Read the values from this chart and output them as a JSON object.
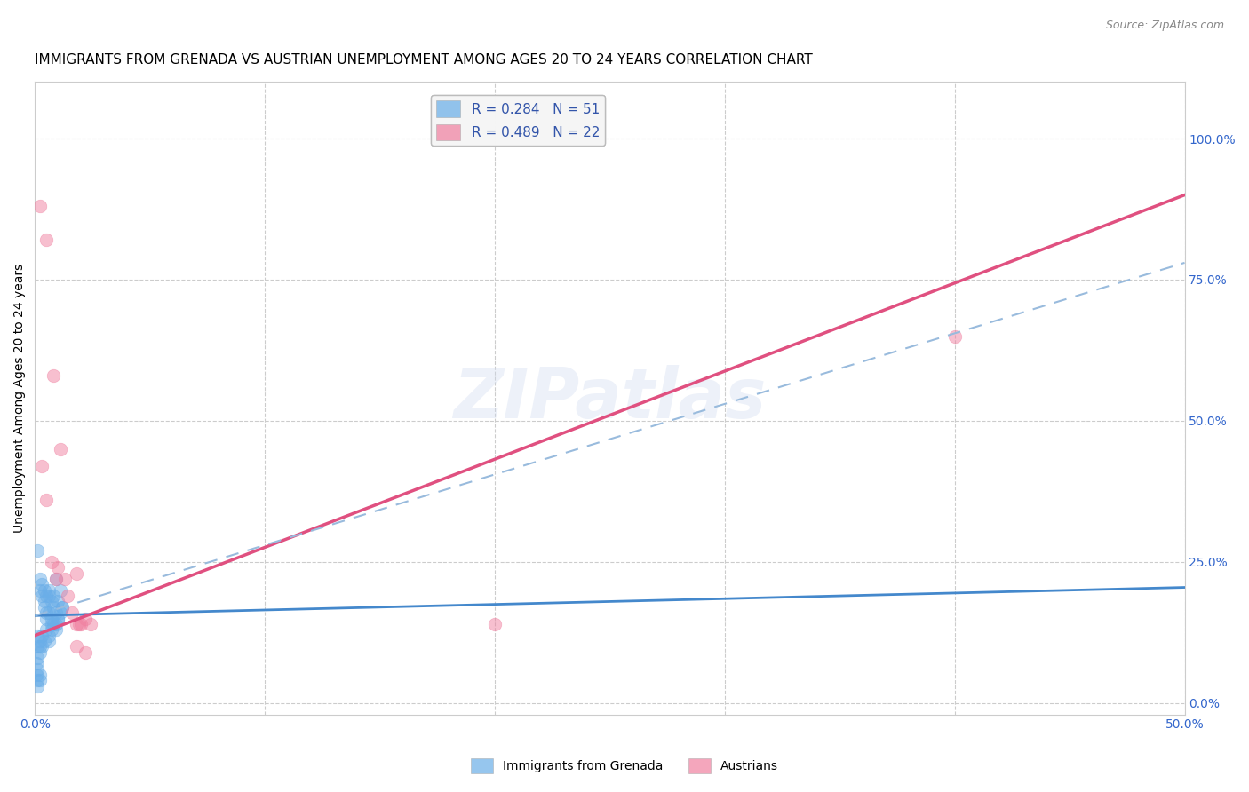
{
  "title": "IMMIGRANTS FROM GRENADA VS AUSTRIAN UNEMPLOYMENT AMONG AGES 20 TO 24 YEARS CORRELATION CHART",
  "source": "Source: ZipAtlas.com",
  "ylabel": "Unemployment Among Ages 20 to 24 years",
  "legend_entries": [
    {
      "label": "R = 0.284   N = 51",
      "color": "#a8c8f8"
    },
    {
      "label": "R = 0.489   N = 22",
      "color": "#f8a8b8"
    }
  ],
  "legend_bottom": [
    "Immigrants from Grenada",
    "Austrians"
  ],
  "watermark": "ZIPatlas",
  "blue_scatter": [
    [
      0.001,
      0.27
    ],
    [
      0.002,
      0.22
    ],
    [
      0.002,
      0.2
    ],
    [
      0.003,
      0.21
    ],
    [
      0.003,
      0.19
    ],
    [
      0.004,
      0.2
    ],
    [
      0.004,
      0.18
    ],
    [
      0.004,
      0.17
    ],
    [
      0.005,
      0.16
    ],
    [
      0.005,
      0.19
    ],
    [
      0.005,
      0.15
    ],
    [
      0.006,
      0.19
    ],
    [
      0.006,
      0.16
    ],
    [
      0.006,
      0.2
    ],
    [
      0.007,
      0.14
    ],
    [
      0.007,
      0.18
    ],
    [
      0.007,
      0.15
    ],
    [
      0.008,
      0.19
    ],
    [
      0.008,
      0.17
    ],
    [
      0.009,
      0.22
    ],
    [
      0.009,
      0.16
    ],
    [
      0.01,
      0.18
    ],
    [
      0.01,
      0.15
    ],
    [
      0.011,
      0.2
    ],
    [
      0.012,
      0.17
    ],
    [
      0.001,
      0.12
    ],
    [
      0.001,
      0.1
    ],
    [
      0.001,
      0.08
    ],
    [
      0.002,
      0.11
    ],
    [
      0.002,
      0.09
    ],
    [
      0.002,
      0.1
    ],
    [
      0.003,
      0.1
    ],
    [
      0.003,
      0.12
    ],
    [
      0.004,
      0.11
    ],
    [
      0.005,
      0.13
    ],
    [
      0.006,
      0.12
    ],
    [
      0.006,
      0.11
    ],
    [
      0.007,
      0.13
    ],
    [
      0.008,
      0.14
    ],
    [
      0.009,
      0.13
    ],
    [
      0.009,
      0.14
    ],
    [
      0.01,
      0.15
    ],
    [
      0.011,
      0.16
    ],
    [
      0.012,
      0.17
    ],
    [
      0.0005,
      0.05
    ],
    [
      0.001,
      0.04
    ],
    [
      0.001,
      0.03
    ],
    [
      0.0005,
      0.07
    ],
    [
      0.001,
      0.06
    ],
    [
      0.002,
      0.05
    ],
    [
      0.002,
      0.04
    ]
  ],
  "pink_scatter": [
    [
      0.002,
      0.88
    ],
    [
      0.005,
      0.82
    ],
    [
      0.008,
      0.58
    ],
    [
      0.011,
      0.45
    ],
    [
      0.003,
      0.42
    ],
    [
      0.005,
      0.36
    ],
    [
      0.007,
      0.25
    ],
    [
      0.009,
      0.22
    ],
    [
      0.01,
      0.24
    ],
    [
      0.013,
      0.22
    ],
    [
      0.018,
      0.23
    ],
    [
      0.014,
      0.19
    ],
    [
      0.016,
      0.16
    ],
    [
      0.018,
      0.14
    ],
    [
      0.019,
      0.14
    ],
    [
      0.02,
      0.14
    ],
    [
      0.022,
      0.09
    ],
    [
      0.022,
      0.15
    ],
    [
      0.024,
      0.14
    ],
    [
      0.018,
      0.1
    ],
    [
      0.2,
      0.14
    ],
    [
      0.4,
      0.65
    ]
  ],
  "blue_line": {
    "x": [
      0.0,
      0.5
    ],
    "y": [
      0.155,
      0.205
    ]
  },
  "pink_line": {
    "x": [
      0.0,
      0.5
    ],
    "y": [
      0.12,
      0.9
    ]
  },
  "blue_dash_line": {
    "x": [
      0.0,
      0.5
    ],
    "y": [
      0.155,
      0.78
    ]
  },
  "xlim": [
    0.0,
    0.5
  ],
  "ylim": [
    -0.02,
    1.1
  ],
  "yticks": [
    0.0,
    0.25,
    0.5,
    0.75,
    1.0
  ],
  "yticklabels_right": [
    "0.0%",
    "25.0%",
    "50.0%",
    "75.0%",
    "100.0%"
  ],
  "xticks": [
    0.0,
    0.1,
    0.2,
    0.3,
    0.4,
    0.5
  ],
  "xticklabels": [
    "0.0%",
    "",
    "",
    "",
    "",
    "50.0%"
  ],
  "scatter_size": 110,
  "background_color": "#ffffff",
  "grid_color": "#cccccc",
  "title_fontsize": 11,
  "axis_label_fontsize": 10,
  "tick_fontsize": 10,
  "blue_color": "#6aaee8",
  "pink_color": "#f080a0",
  "blue_line_color": "#4488cc",
  "pink_line_color": "#e05080",
  "blue_dash_color": "#99bbdd"
}
